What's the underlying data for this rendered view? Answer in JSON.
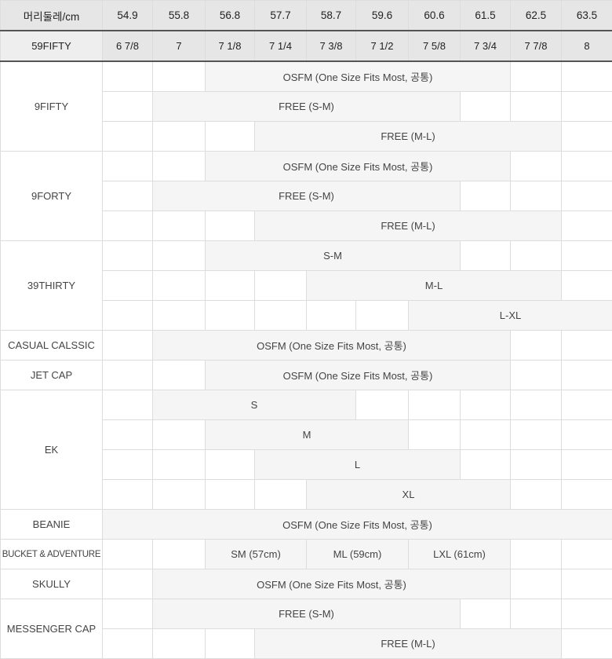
{
  "header": {
    "label": "머리둘레/cm",
    "sizes": [
      "54.9",
      "55.8",
      "56.8",
      "57.7",
      "58.7",
      "59.6",
      "60.6",
      "61.5",
      "62.5",
      "63.5"
    ]
  },
  "sub_header": {
    "label": "59FIFTY",
    "sizes": [
      "6 7/8",
      "7",
      "7 1/8",
      "7 1/4",
      "7 3/8",
      "7 1/2",
      "7 5/8",
      "7 3/4",
      "7 7/8",
      "8"
    ]
  },
  "colors": {
    "header_bg": "#e6e6e6",
    "range_bg": "#f5f5f5",
    "border": "#dddddd"
  },
  "models": [
    {
      "label": "9FIFTY",
      "lines": [
        {
          "text": "OSFM (One Size Fits Most, 공통)",
          "from": "56.8",
          "to": "61.5"
        },
        {
          "text": "FREE (S-M)",
          "from": "55.8",
          "to": "60.6"
        },
        {
          "text": "FREE (M-L)",
          "from": "57.7",
          "to": "62.5"
        }
      ]
    },
    {
      "label": "9FORTY",
      "lines": [
        {
          "text": "OSFM (One Size Fits Most, 공통)",
          "from": "56.8",
          "to": "61.5"
        },
        {
          "text": "FREE (S-M)",
          "from": "55.8",
          "to": "60.6"
        },
        {
          "text": "FREE (M-L)",
          "from": "57.7",
          "to": "62.5"
        }
      ]
    },
    {
      "label": "39THIRTY",
      "lines": [
        {
          "text": "S-M",
          "from": "56.8",
          "to": "60.6"
        },
        {
          "text": "M-L",
          "from": "58.7",
          "to": "62.5"
        },
        {
          "text": "L-XL",
          "from": "60.6",
          "to": "63.5"
        }
      ]
    },
    {
      "label": "CASUAL CALSSIC",
      "lines": [
        {
          "text": "OSFM (One Size Fits Most, 공통)",
          "from": "55.8",
          "to": "61.5"
        }
      ]
    },
    {
      "label": "JET CAP",
      "lines": [
        {
          "text": "OSFM (One Size Fits Most, 공통)",
          "from": "56.8",
          "to": "61.5"
        }
      ]
    },
    {
      "label": "EK",
      "lines": [
        {
          "text": "S",
          "from": "55.8",
          "to": "58.7"
        },
        {
          "text": "M",
          "from": "56.8",
          "to": "59.6"
        },
        {
          "text": "L",
          "from": "57.7",
          "to": "60.6"
        },
        {
          "text": "XL",
          "from": "58.7",
          "to": "61.5"
        }
      ]
    },
    {
      "label": "BEANIE",
      "lines": [
        {
          "text": "OSFM (One Size Fits Most, 공통)",
          "from": "54.9",
          "to": "63.5"
        }
      ]
    },
    {
      "label": "BUCKET & ADVENTURE",
      "small": true,
      "lines": [
        {
          "cells": [
            {
              "text": "SM (57cm)",
              "from": "56.8",
              "to": "57.7"
            },
            {
              "text": "ML (59cm)",
              "from": "58.7",
              "to": "59.6"
            },
            {
              "text": "LXL (61cm)",
              "from": "60.6",
              "to": "61.5"
            }
          ]
        }
      ]
    },
    {
      "label": "SKULLY",
      "lines": [
        {
          "text": "OSFM (One Size Fits Most, 공통)",
          "from": "55.8",
          "to": "61.5"
        }
      ]
    },
    {
      "label": "MESSENGER CAP",
      "lines": [
        {
          "text": "FREE (S-M)",
          "from": "55.8",
          "to": "60.6"
        },
        {
          "text": "FREE (M-L)",
          "from": "57.7",
          "to": "62.5"
        }
      ]
    }
  ]
}
